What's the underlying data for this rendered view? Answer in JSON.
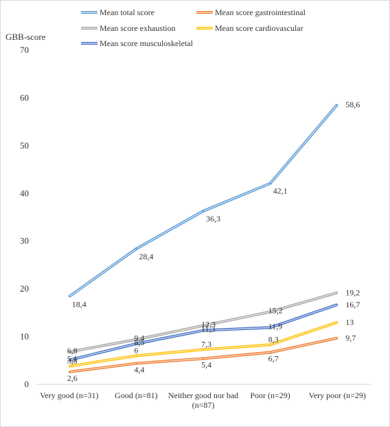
{
  "chart_data": {
    "type": "line",
    "title": "",
    "xlabel": "",
    "ylabel": "GBB-score",
    "ylim": [
      0,
      70
    ],
    "yticks": [
      0,
      10,
      20,
      30,
      40,
      50,
      60,
      70
    ],
    "grid": false,
    "legend_position": "top",
    "categories": [
      [
        "Very good (n=31)"
      ],
      [
        "Good (n=81)"
      ],
      [
        "Neither good nor bad",
        "(n=87)"
      ],
      [
        "Poor (n=29)"
      ],
      [
        "Very poor (n=29)"
      ]
    ],
    "series": [
      {
        "name": "Mean  total score",
        "color": "#5B9BD5",
        "values": [
          18.4,
          28.4,
          36.3,
          42.1,
          58.6
        ],
        "labels": [
          "18,4",
          "28,4",
          "36,3",
          "42,1",
          "58,6"
        ]
      },
      {
        "name": "Mean score gastrointestinal",
        "color": "#ED7D31",
        "values": [
          2.6,
          4.4,
          5.4,
          6.7,
          9.7
        ],
        "labels": [
          "2,6",
          "4,4",
          "5,4",
          "6,7",
          "9,7"
        ]
      },
      {
        "name": "Mean score exhaustion",
        "color": "#A5A5A5",
        "values": [
          6.8,
          9.4,
          12.3,
          15.2,
          19.2
        ],
        "labels": [
          "6,8",
          "9,4",
          "12,3",
          "15,2",
          "19,2"
        ]
      },
      {
        "name": "Mean score cardiovascular",
        "color": "#FFC000",
        "values": [
          3.8,
          6,
          7.3,
          8.3,
          13
        ],
        "labels": [
          "3,8",
          "6",
          "7,3",
          "8,3",
          "13"
        ]
      },
      {
        "name": "Mean score musculoskeletal",
        "color": "#4472C4",
        "values": [
          5.1,
          8.5,
          11.3,
          11.9,
          16.7
        ],
        "labels": [
          "5,1",
          "8,5",
          "11,3",
          "11,9",
          "16,7"
        ]
      }
    ]
  }
}
